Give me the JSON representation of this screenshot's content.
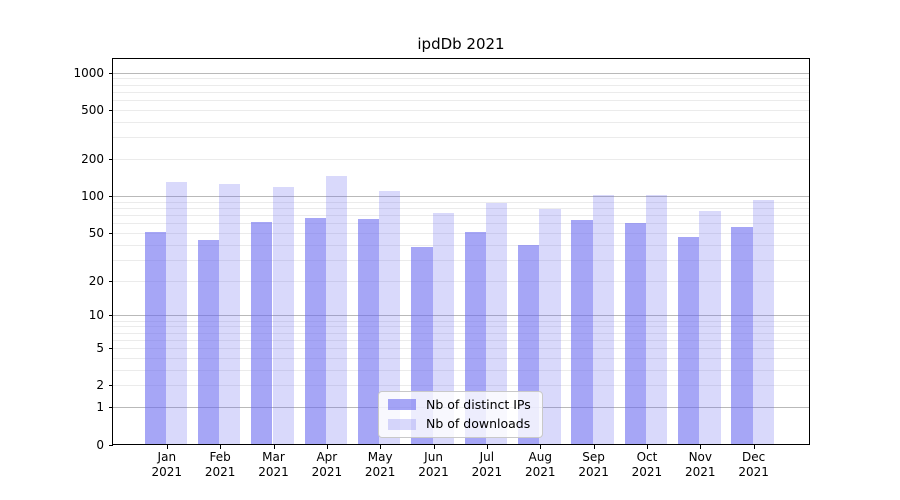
{
  "title": "ipdDb 2021",
  "chart_data": {
    "type": "bar",
    "title": "ipdDb 2021",
    "categories": [
      "Jan 2021",
      "Feb 2021",
      "Mar 2021",
      "Apr 2021",
      "May 2021",
      "Jun 2021",
      "Jul 2021",
      "Aug 2021",
      "Sep 2021",
      "Oct 2021",
      "Nov 2021",
      "Dec 2021"
    ],
    "series": [
      {
        "name": "Nb of distinct IPs",
        "values": [
          51,
          44,
          61,
          66,
          65,
          38,
          51,
          40,
          64,
          60,
          46,
          56
        ],
        "fill": "rgba(102,102,240,0.58)"
      },
      {
        "name": "Nb of downloads",
        "values": [
          130,
          125,
          119,
          145,
          109,
          73,
          87,
          78,
          102,
          102,
          75,
          93
        ],
        "fill": "rgba(102,102,240,0.25)"
      }
    ],
    "yscale": "log1p",
    "yticks": [
      0,
      1,
      2,
      5,
      10,
      20,
      50,
      100,
      200,
      500,
      1000
    ],
    "ylim": [
      0,
      1300
    ],
    "xlabel": "",
    "ylabel": "",
    "grid": true,
    "legend_position": "lower center",
    "colors": {
      "grid_major": "#b9b9b9",
      "grid_minor": "#ebebeb",
      "spine": "#000000",
      "text": "#000000",
      "legend_border": "#c9c9c9",
      "background": "#ffffff"
    }
  }
}
